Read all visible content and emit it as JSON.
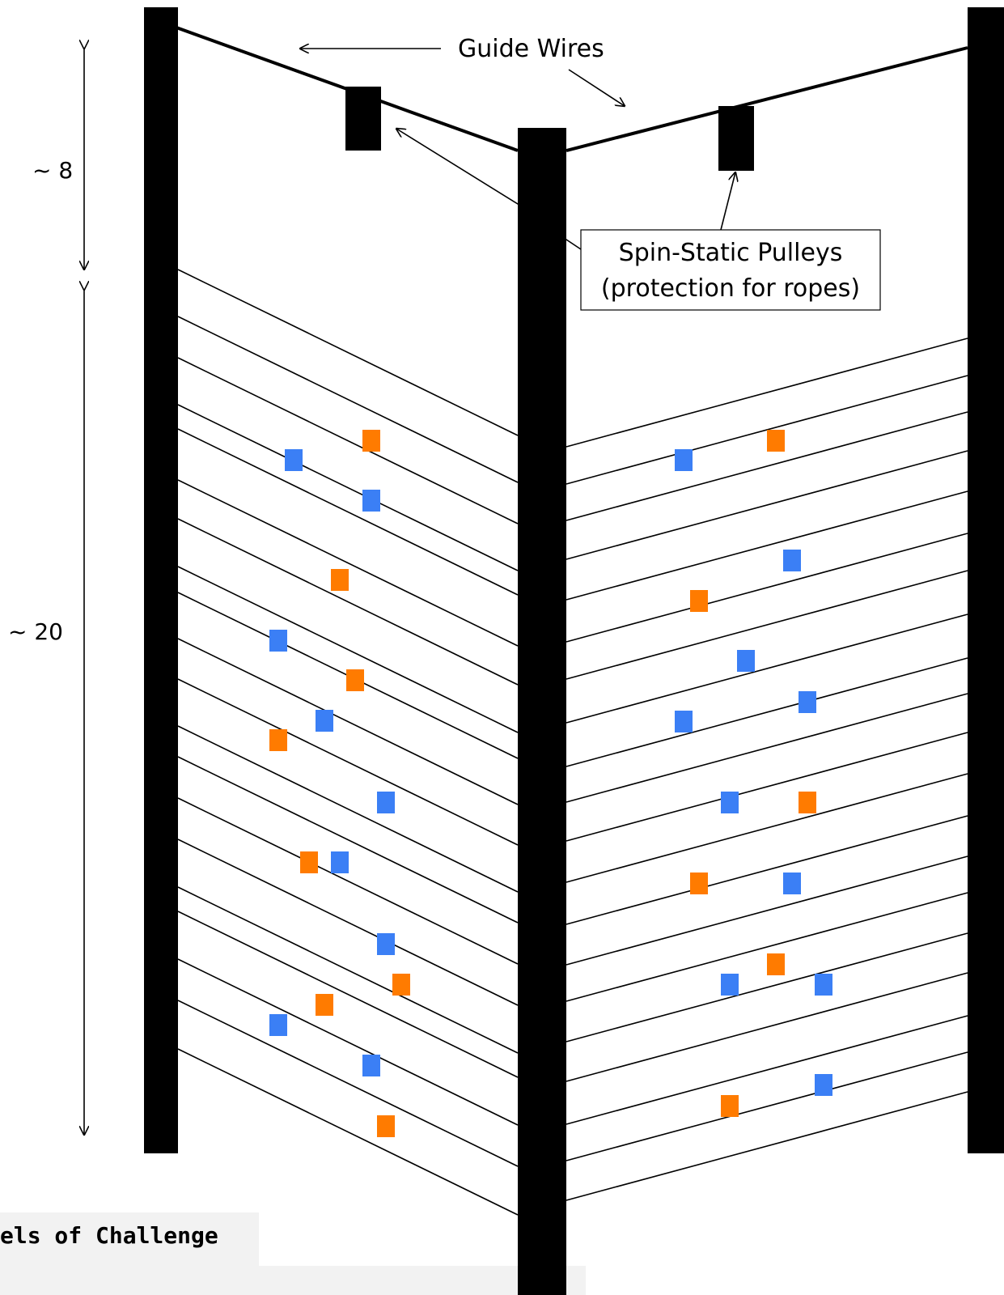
{
  "labels": {
    "guide_wires": "Guide Wires",
    "pulleys_line1": "Spin-Static Pulleys",
    "pulleys_line2": "(protection for ropes)",
    "dim_top": "~ 8",
    "dim_main": "~ 20",
    "caption": "els of Challenge"
  },
  "colors": {
    "post": "#000000",
    "line": "#000000",
    "hold_blue": "#3b7ff5",
    "hold_orange": "#ff7b00",
    "caption_bg": "#f2f2f2"
  }
}
